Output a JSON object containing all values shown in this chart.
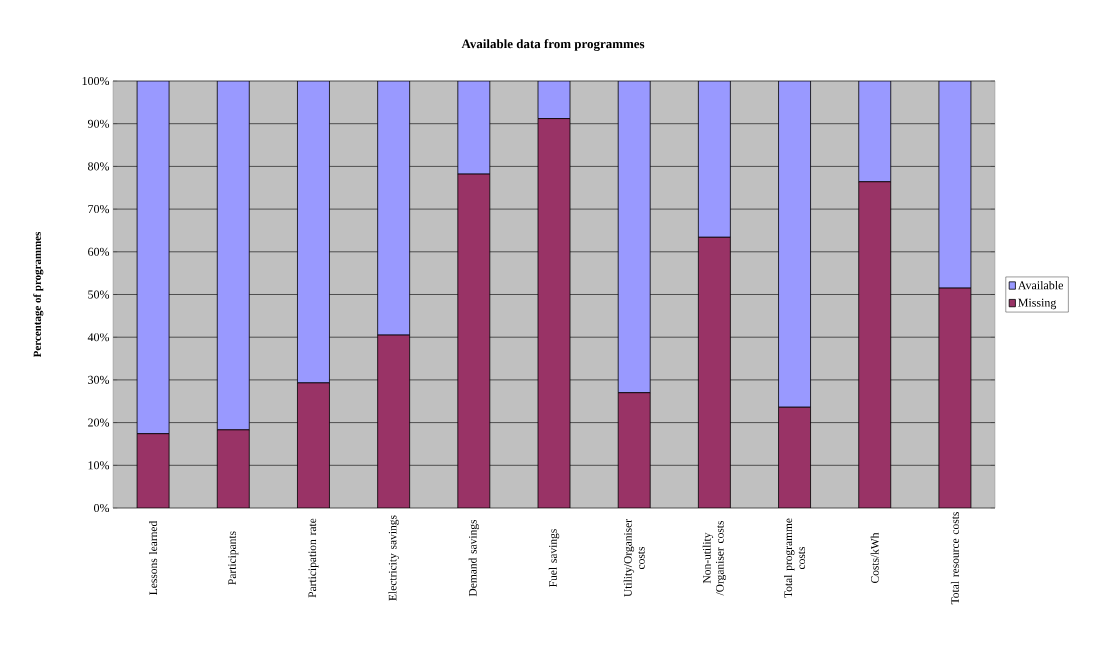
{
  "chart_data": {
    "type": "bar",
    "title": "Available data from programmes",
    "ylabel": "Percentage of programmes",
    "categories": [
      "Lessons learned",
      "Participants",
      "Participation rate",
      "Electricity savings",
      "Demand savings",
      "Fuel savings",
      "Utility/Organiser costs",
      "Non-utility /Organiser costs",
      "Total programme costs",
      "Costs/kWh",
      "Total resource costs"
    ],
    "series": [
      {
        "name": "Missing",
        "color": "#993366",
        "values": [
          17.4,
          18.3,
          29.3,
          40.5,
          78.2,
          91.2,
          27.0,
          63.4,
          23.6,
          76.4,
          51.5
        ]
      },
      {
        "name": "Available",
        "color": "#9999ff",
        "values": [
          82.6,
          81.7,
          70.7,
          59.5,
          21.8,
          8.8,
          73.0,
          36.6,
          76.4,
          23.6,
          48.5
        ]
      }
    ],
    "stacked": true,
    "ylim": [
      0,
      100
    ],
    "yticks": [
      {
        "value": 0,
        "label": "0%"
      },
      {
        "value": 10,
        "label": "10%"
      },
      {
        "value": 20,
        "label": "20%"
      },
      {
        "value": 30,
        "label": "30%"
      },
      {
        "value": 40,
        "label": "40%"
      },
      {
        "value": 50,
        "label": "50%"
      },
      {
        "value": 60,
        "label": "60%"
      },
      {
        "value": 70,
        "label": "70%"
      },
      {
        "value": 80,
        "label": "80%"
      },
      {
        "value": 90,
        "label": "90%"
      },
      {
        "value": 100,
        "label": "100%"
      }
    ],
    "grid": "y",
    "legend": "right"
  }
}
